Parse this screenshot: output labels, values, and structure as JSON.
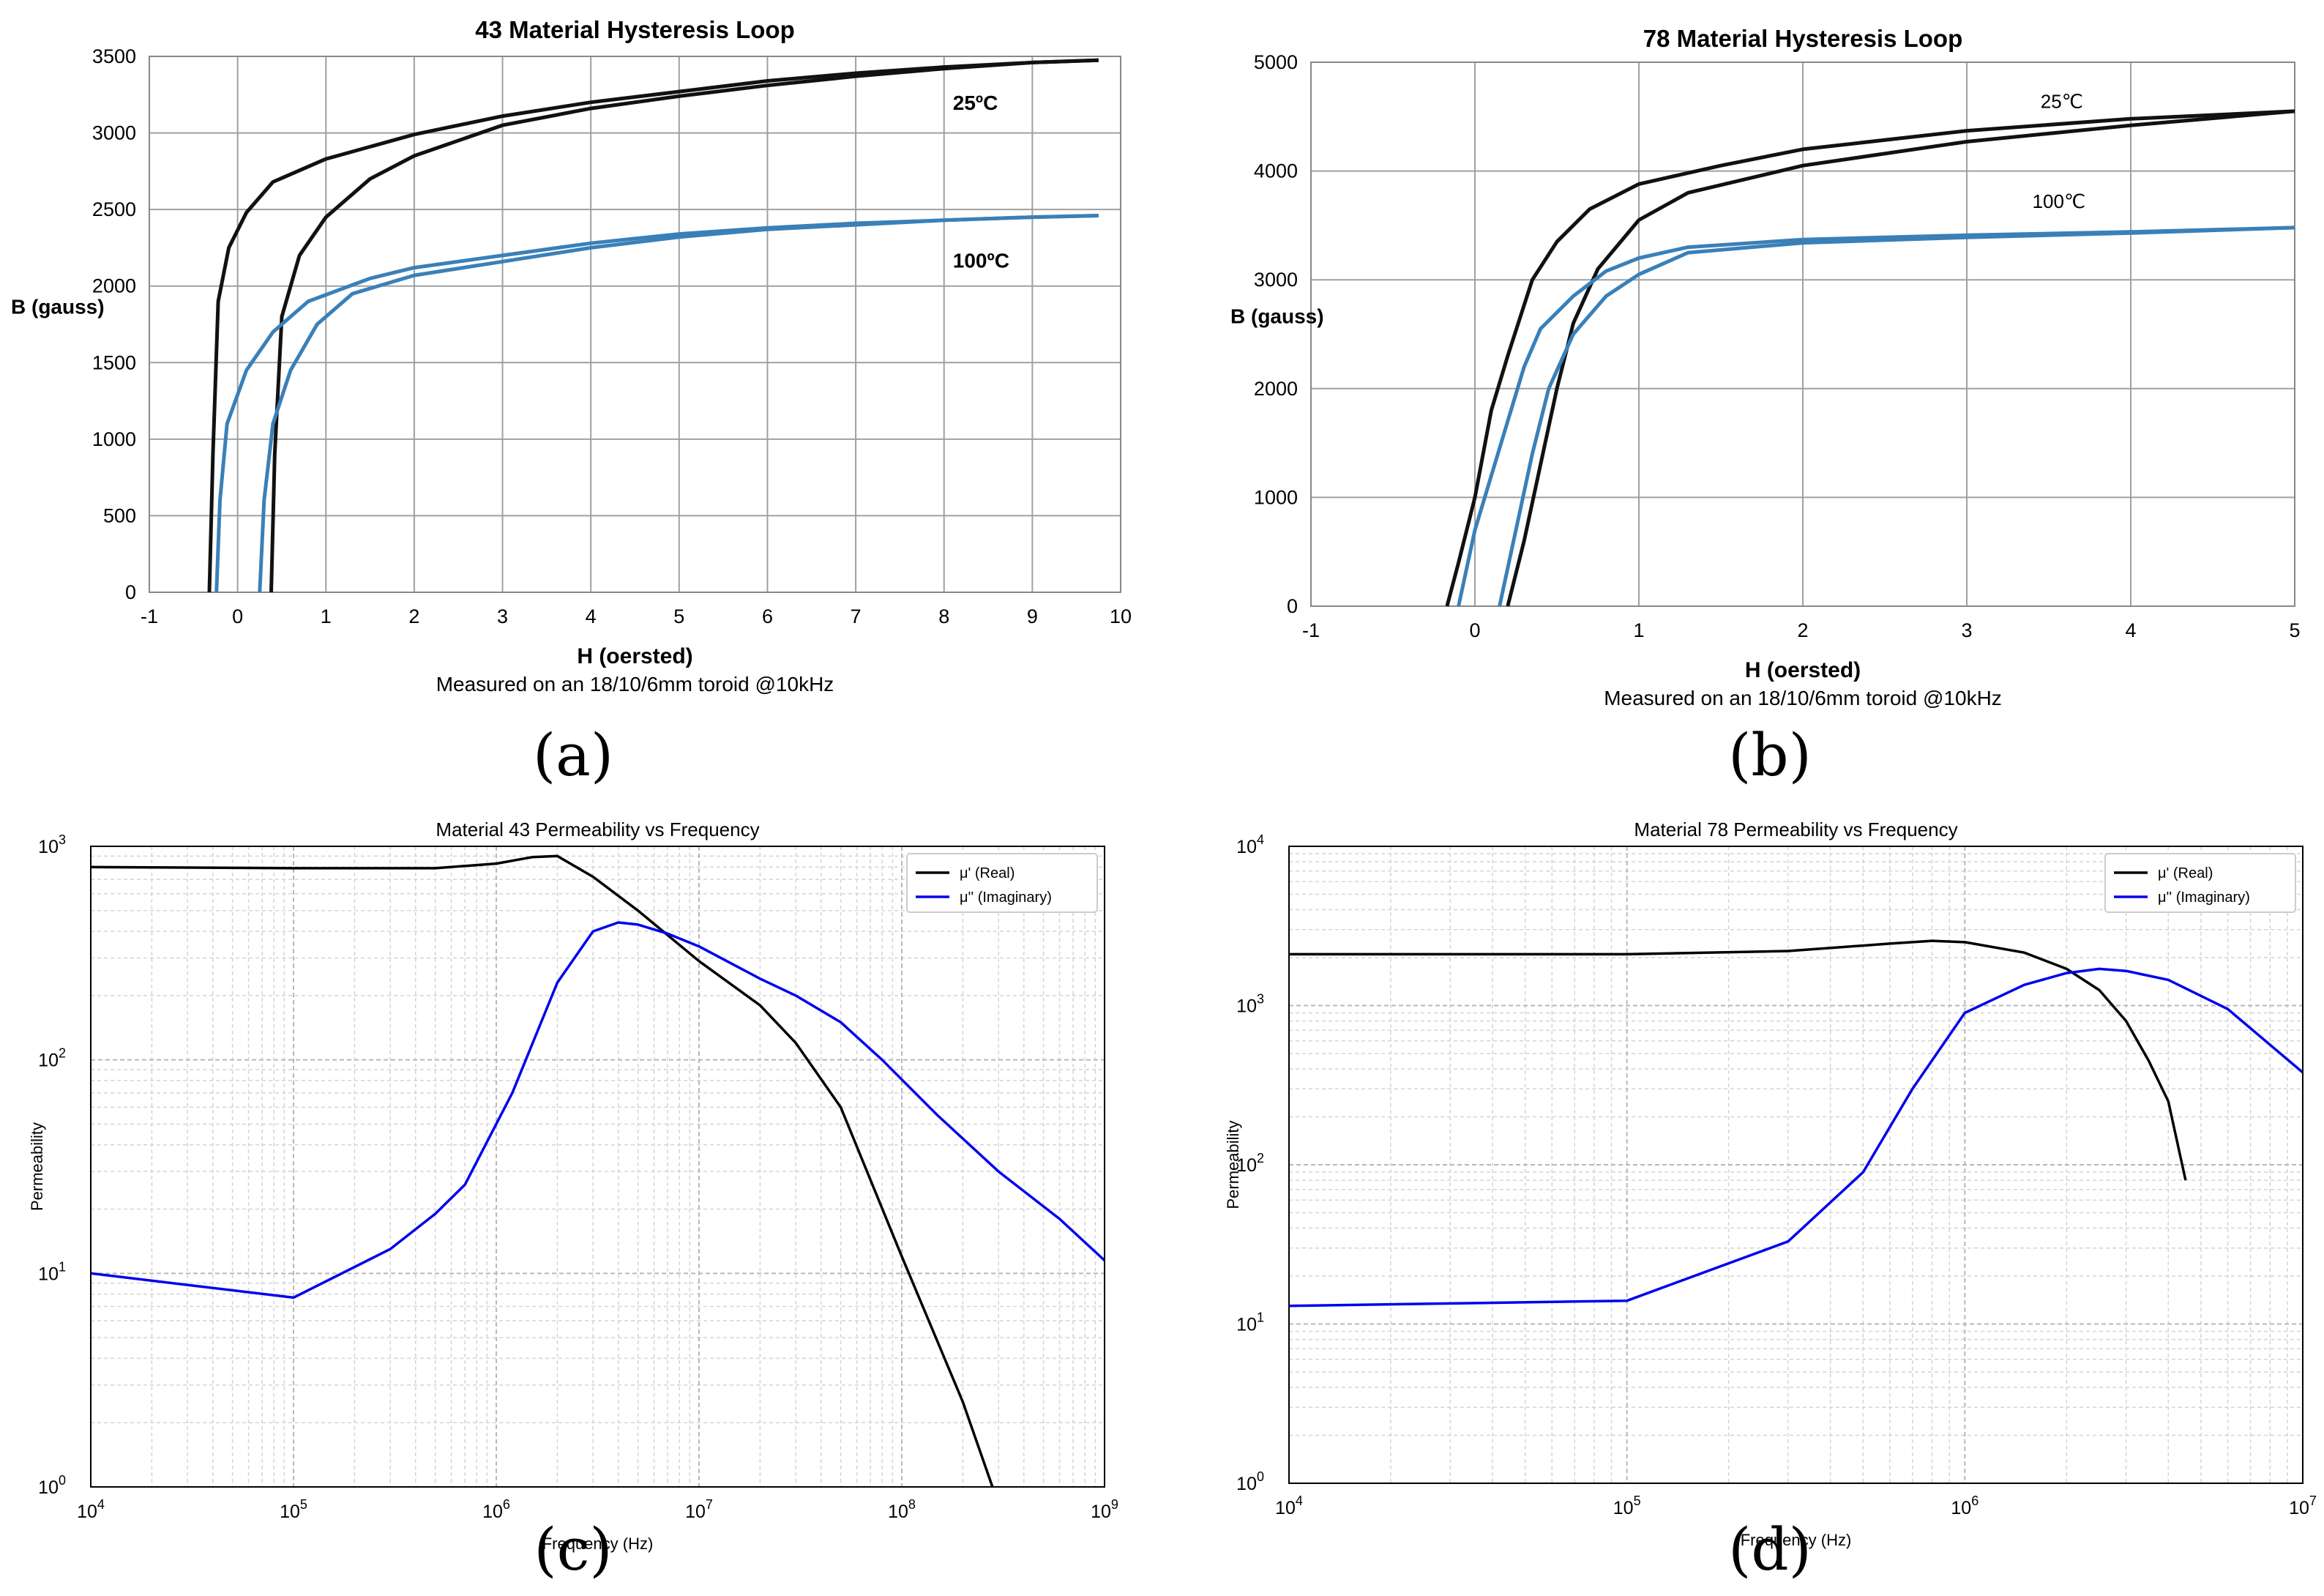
{
  "figure": {
    "panels": [
      {
        "id": "a",
        "caption": "(a)"
      },
      {
        "id": "b",
        "caption": "(b)"
      },
      {
        "id": "c",
        "caption": "(c)"
      },
      {
        "id": "d",
        "caption": "(d)"
      }
    ]
  },
  "colors": {
    "black_curve": "#111111",
    "blue_curve": "#3a80b8",
    "pure_blue": "#0000ee",
    "grid": "#a0a0a0",
    "minor_grid": "#d4d4d4"
  },
  "chart_data": [
    {
      "id": "a",
      "type": "line",
      "title": "43 Material Hysteresis Loop",
      "xlabel": "H (oersted)",
      "ylabel": "B (gauss)",
      "subtitle": "Measured on an 18/10/6mm toroid @10kHz",
      "xlim": [
        -1,
        10
      ],
      "ylim": [
        0,
        3500
      ],
      "xticks": [
        "-1",
        "0",
        "1",
        "2",
        "3",
        "4",
        "5",
        "6",
        "7",
        "8",
        "9",
        "10"
      ],
      "yticks": [
        "0",
        "500",
        "1000",
        "1500",
        "2000",
        "2500",
        "3000",
        "3500"
      ],
      "annotations": [
        {
          "text": "25ºC",
          "x": 8.1,
          "y": 3150
        },
        {
          "text": "100ºC",
          "x": 8.1,
          "y": 2120
        }
      ],
      "series": [
        {
          "name": "25ºC",
          "color": "black",
          "points": [
            [
              -0.32,
              0
            ],
            [
              -0.28,
              900
            ],
            [
              -0.22,
              1900
            ],
            [
              -0.1,
              2250
            ],
            [
              0.1,
              2480
            ],
            [
              0.4,
              2680
            ],
            [
              1,
              2830
            ],
            [
              2,
              2990
            ],
            [
              3,
              3110
            ],
            [
              4,
              3200
            ],
            [
              5,
              3270
            ],
            [
              6,
              3340
            ],
            [
              7,
              3390
            ],
            [
              8,
              3430
            ],
            [
              9,
              3460
            ],
            [
              9.75,
              3475
            ]
          ]
        },
        {
          "name": "25ºC",
          "color": "black",
          "points": [
            [
              0.38,
              0
            ],
            [
              0.42,
              900
            ],
            [
              0.5,
              1800
            ],
            [
              0.7,
              2200
            ],
            [
              1,
              2450
            ],
            [
              1.5,
              2700
            ],
            [
              2,
              2850
            ],
            [
              3,
              3050
            ],
            [
              4,
              3160
            ],
            [
              5,
              3240
            ],
            [
              6,
              3310
            ],
            [
              7,
              3370
            ],
            [
              8,
              3420
            ],
            [
              9,
              3460
            ],
            [
              9.75,
              3475
            ]
          ]
        },
        {
          "name": "100ºC",
          "color": "blue",
          "points": [
            [
              -0.24,
              0
            ],
            [
              -0.2,
              600
            ],
            [
              -0.12,
              1100
            ],
            [
              0.1,
              1450
            ],
            [
              0.4,
              1700
            ],
            [
              0.8,
              1900
            ],
            [
              1.5,
              2050
            ],
            [
              2,
              2120
            ],
            [
              3,
              2200
            ],
            [
              4,
              2280
            ],
            [
              5,
              2340
            ],
            [
              6,
              2380
            ],
            [
              7,
              2410
            ],
            [
              8,
              2430
            ],
            [
              9,
              2450
            ],
            [
              9.75,
              2460
            ]
          ]
        },
        {
          "name": "100ºC",
          "color": "blue",
          "points": [
            [
              0.25,
              0
            ],
            [
              0.3,
              600
            ],
            [
              0.4,
              1100
            ],
            [
              0.6,
              1450
            ],
            [
              0.9,
              1750
            ],
            [
              1.3,
              1950
            ],
            [
              2,
              2070
            ],
            [
              3,
              2160
            ],
            [
              4,
              2250
            ],
            [
              5,
              2320
            ],
            [
              6,
              2370
            ],
            [
              7,
              2400
            ],
            [
              8,
              2430
            ],
            [
              9,
              2450
            ],
            [
              9.75,
              2460
            ]
          ]
        }
      ]
    },
    {
      "id": "b",
      "type": "line",
      "title": "78 Material Hysteresis Loop",
      "xlabel": "H (oersted)",
      "ylabel": "B (gauss)",
      "subtitle": "Measured on an 18/10/6mm toroid @10kHz",
      "xlim": [
        -1,
        5
      ],
      "ylim": [
        0,
        5000
      ],
      "xticks": [
        "-1",
        "0",
        "1",
        "2",
        "3",
        "4",
        "5"
      ],
      "yticks": [
        "0",
        "1000",
        "2000",
        "3000",
        "4000",
        "5000"
      ],
      "annotations": [
        {
          "text": "25℃",
          "x": 3.45,
          "y": 4580
        },
        {
          "text": "100℃",
          "x": 3.4,
          "y": 3660
        }
      ],
      "series": [
        {
          "name": "25℃",
          "color": "black",
          "points": [
            [
              -0.17,
              0
            ],
            [
              -0.1,
              400
            ],
            [
              0,
              1000
            ],
            [
              0.1,
              1800
            ],
            [
              0.2,
              2300
            ],
            [
              0.35,
              3000
            ],
            [
              0.5,
              3350
            ],
            [
              0.7,
              3650
            ],
            [
              1,
              3880
            ],
            [
              1.5,
              4050
            ],
            [
              2,
              4200
            ],
            [
              3,
              4370
            ],
            [
              4,
              4480
            ],
            [
              5,
              4550
            ]
          ]
        },
        {
          "name": "25℃",
          "color": "black",
          "points": [
            [
              0.2,
              0
            ],
            [
              0.3,
              600
            ],
            [
              0.4,
              1300
            ],
            [
              0.5,
              2000
            ],
            [
              0.6,
              2600
            ],
            [
              0.75,
              3100
            ],
            [
              1,
              3550
            ],
            [
              1.3,
              3800
            ],
            [
              2,
              4050
            ],
            [
              3,
              4270
            ],
            [
              4,
              4420
            ],
            [
              5,
              4550
            ]
          ]
        },
        {
          "name": "100℃",
          "color": "blue",
          "points": [
            [
              -0.1,
              0
            ],
            [
              0,
              700
            ],
            [
              0.1,
              1200
            ],
            [
              0.2,
              1700
            ],
            [
              0.3,
              2200
            ],
            [
              0.4,
              2550
            ],
            [
              0.6,
              2850
            ],
            [
              0.8,
              3080
            ],
            [
              1,
              3200
            ],
            [
              1.3,
              3300
            ],
            [
              2,
              3370
            ],
            [
              3,
              3410
            ],
            [
              4,
              3440
            ],
            [
              5,
              3480
            ]
          ]
        },
        {
          "name": "100℃",
          "color": "blue",
          "points": [
            [
              0.15,
              0
            ],
            [
              0.25,
              700
            ],
            [
              0.35,
              1400
            ],
            [
              0.45,
              2000
            ],
            [
              0.6,
              2500
            ],
            [
              0.8,
              2850
            ],
            [
              1,
              3050
            ],
            [
              1.3,
              3250
            ],
            [
              2,
              3340
            ],
            [
              3,
              3390
            ],
            [
              4,
              3430
            ],
            [
              5,
              3480
            ]
          ]
        }
      ]
    },
    {
      "id": "c",
      "type": "line",
      "title": "Material 43 Permeability vs Frequency",
      "xlabel": "Frequency (Hz)",
      "ylabel": "Permeability",
      "xscale": "log",
      "yscale": "log",
      "xlim_exp": [
        4,
        9
      ],
      "ylim_exp": [
        0,
        3
      ],
      "xticks": [
        "4",
        "5",
        "6",
        "7",
        "8",
        "9"
      ],
      "yticks": [
        "0",
        "1",
        "2",
        "3"
      ],
      "legend": "top-right",
      "series": [
        {
          "name": "μ' (Real)",
          "color": "black",
          "points": [
            [
              10000,
              800
            ],
            [
              100000,
              790
            ],
            [
              500000,
              790
            ],
            [
              1000000,
              830
            ],
            [
              1500000,
              890
            ],
            [
              2000000,
              900
            ],
            [
              3000000,
              720
            ],
            [
              5000000,
              500
            ],
            [
              10000000,
              290
            ],
            [
              20000000,
              180
            ],
            [
              30000000,
              120
            ],
            [
              50000000,
              60
            ],
            [
              100000000,
              12
            ],
            [
              200000000,
              2.5
            ],
            [
              280000000,
              1
            ]
          ]
        },
        {
          "name": "μ'' (Imaginary)",
          "color": "blue",
          "points": [
            [
              10000,
              10
            ],
            [
              100000,
              7.7
            ],
            [
              300000,
              13
            ],
            [
              500000,
              19
            ],
            [
              700000,
              26
            ],
            [
              1200000,
              70
            ],
            [
              2000000,
              230
            ],
            [
              3000000,
              400
            ],
            [
              4000000,
              440
            ],
            [
              5000000,
              430
            ],
            [
              7000000,
              390
            ],
            [
              10000000,
              340
            ],
            [
              20000000,
              240
            ],
            [
              30000000,
              200
            ],
            [
              50000000,
              150
            ],
            [
              80000000,
              100
            ],
            [
              150000000,
              55
            ],
            [
              300000000,
              30
            ],
            [
              600000000,
              18
            ],
            [
              1000000000,
              11.5
            ]
          ]
        }
      ]
    },
    {
      "id": "d",
      "type": "line",
      "title": "Material 78 Permeability vs Frequency",
      "xlabel": "Frequency (Hz)",
      "ylabel": "Permeability",
      "xscale": "log",
      "yscale": "log",
      "xlim_exp": [
        4,
        7
      ],
      "ylim_exp": [
        0,
        4
      ],
      "xticks": [
        "4",
        "5",
        "6",
        "7"
      ],
      "yticks": [
        "0",
        "1",
        "2",
        "3",
        "4"
      ],
      "legend": "top-right",
      "series": [
        {
          "name": "μ' (Real)",
          "color": "black",
          "points": [
            [
              10000,
              2100
            ],
            [
              100000,
              2100
            ],
            [
              300000,
              2200
            ],
            [
              600000,
              2450
            ],
            [
              800000,
              2550
            ],
            [
              1000000,
              2500
            ],
            [
              1500000,
              2150
            ],
            [
              2000000,
              1700
            ],
            [
              2500000,
              1250
            ],
            [
              3000000,
              800
            ],
            [
              3500000,
              450
            ],
            [
              4000000,
              250
            ],
            [
              4500000,
              80
            ]
          ]
        },
        {
          "name": "μ'' (Imaginary)",
          "color": "blue",
          "points": [
            [
              10000,
              13
            ],
            [
              100000,
              14
            ],
            [
              300000,
              33
            ],
            [
              500000,
              90
            ],
            [
              700000,
              300
            ],
            [
              1000000,
              900
            ],
            [
              1500000,
              1350
            ],
            [
              2000000,
              1600
            ],
            [
              2500000,
              1700
            ],
            [
              3000000,
              1650
            ],
            [
              4000000,
              1450
            ],
            [
              6000000,
              950
            ],
            [
              10000000,
              380
            ]
          ]
        }
      ]
    }
  ]
}
